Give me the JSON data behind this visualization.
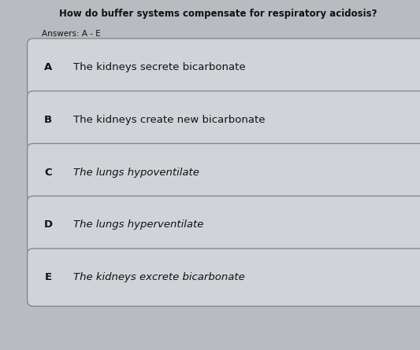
{
  "title": "How do buffer systems compensate for respiratory acidosis?",
  "subtitle": "Answers: A - E",
  "options": [
    {
      "letter": "A",
      "text": "The kidneys secrete bicarbonate",
      "style": "normal"
    },
    {
      "letter": "B",
      "text": "The kidneys create new bicarbonate",
      "style": "normal"
    },
    {
      "letter": "C",
      "text": "The lungs hypoventilate",
      "style": "italic"
    },
    {
      "letter": "D",
      "text": "The lungs hyperventilate",
      "style": "italic"
    },
    {
      "letter": "E",
      "text": "The kidneys excrete bicarbonate",
      "style": "italic"
    }
  ],
  "background_color": "#b8bcc0",
  "box_color": "#d0d4d8",
  "box_edge_color": "#888888",
  "title_color": "#111111",
  "text_color": "#111111",
  "letter_color": "#111111",
  "title_fontsize": 8.5,
  "subtitle_fontsize": 7.5,
  "option_fontsize": 9.5,
  "letter_fontsize": 9.5,
  "fig_width": 5.33,
  "fig_height": 4.45,
  "dpi": 100
}
